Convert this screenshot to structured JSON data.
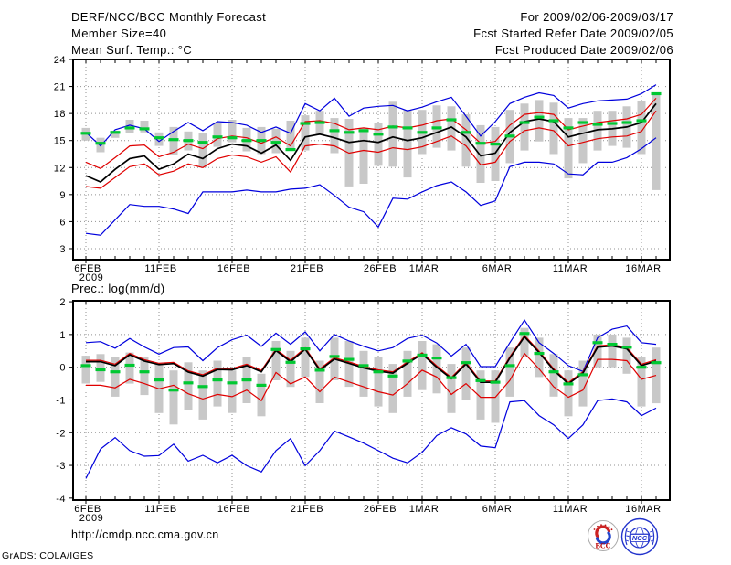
{
  "header": {
    "title": "DERF/NCC/BCC Monthly Forecast",
    "date_range": "For 2009/02/06-2009/03/17",
    "member_size": "Member Size=40",
    "refer_date": "Fcst Started Refer Date 2009/02/05",
    "produced_date": "Fcst Produced Date 2009/02/06"
  },
  "footer": {
    "url": "http://cmdp.ncc.cma.gov.cn",
    "credit": "GrADS: COLA/IGES",
    "logo_bcc": "BCC",
    "logo_ncc": "NCC"
  },
  "chart_data": [
    {
      "type": "line",
      "id": "surface-temperature",
      "title": "Mean Surf. Temp.: °C",
      "ylabel": "°C",
      "ylim": [
        1.78,
        24
      ],
      "yticks": [
        24,
        21,
        18,
        15,
        12,
        9,
        6,
        3
      ],
      "grid": true,
      "n_days": 40,
      "xticks": [
        {
          "day": 0,
          "label": "6FEB",
          "sublabel": "2009"
        },
        {
          "day": 5,
          "label": "11FEB"
        },
        {
          "day": 10,
          "label": "16FEB"
        },
        {
          "day": 15,
          "label": "21FEB"
        },
        {
          "day": 20,
          "label": "26FEB"
        },
        {
          "day": 23,
          "label": "1MAR"
        },
        {
          "day": 28,
          "label": "6MAR"
        },
        {
          "day": 33,
          "label": "11MAR"
        },
        {
          "day": 38,
          "label": "16MAR"
        }
      ],
      "series": [
        {
          "name": "ensemble-max",
          "color": "#0000dd",
          "width": 1.2,
          "values": [
            15.9,
            14.4,
            16.2,
            16.7,
            16.3,
            14.9,
            16.0,
            17.0,
            16.1,
            17.1,
            17.0,
            16.7,
            15.9,
            16.5,
            15.8,
            19.1,
            18.3,
            19.7,
            17.7,
            18.6,
            18.8,
            18.9,
            18.3,
            18.7,
            19.3,
            19.8,
            17.7,
            15.5,
            17.1,
            19.1,
            19.8,
            20.3,
            20.0,
            18.6,
            19.1,
            19.4,
            19.5,
            19.6,
            20.2,
            21.2
          ]
        },
        {
          "name": "plus-std",
          "color": "#e00000",
          "width": 1.2,
          "values": [
            12.6,
            11.9,
            13.1,
            14.4,
            14.5,
            13.2,
            13.7,
            14.6,
            14.1,
            15.2,
            15.5,
            15.3,
            14.7,
            15.4,
            14.4,
            17.1,
            17.2,
            16.9,
            16.2,
            16.4,
            16.2,
            16.6,
            16.4,
            16.7,
            17.2,
            17.4,
            16.2,
            14.7,
            14.9,
            16.7,
            17.9,
            18.1,
            17.9,
            16.2,
            16.6,
            17.0,
            17.2,
            17.4,
            17.9,
            19.7
          ]
        },
        {
          "name": "ensemble-mean",
          "color": "#000000",
          "width": 1.7,
          "values": [
            11.1,
            10.4,
            11.8,
            13.0,
            13.3,
            11.8,
            12.4,
            13.5,
            13.0,
            14.1,
            14.6,
            14.4,
            13.6,
            14.5,
            12.8,
            15.4,
            15.7,
            15.3,
            14.8,
            15.0,
            14.8,
            15.4,
            15.0,
            15.3,
            15.9,
            16.5,
            15.4,
            13.3,
            13.6,
            15.9,
            17.1,
            17.4,
            17.1,
            15.4,
            15.8,
            16.2,
            16.3,
            16.5,
            17.0,
            19.1
          ]
        },
        {
          "name": "minus-std",
          "color": "#e00000",
          "width": 1.2,
          "values": [
            9.9,
            9.7,
            10.9,
            12.1,
            12.4,
            11.2,
            11.6,
            12.4,
            12.0,
            13.0,
            13.4,
            13.2,
            12.6,
            13.2,
            11.5,
            14.4,
            14.6,
            14.4,
            13.6,
            13.9,
            13.7,
            14.2,
            14.0,
            14.3,
            14.9,
            15.5,
            14.4,
            12.3,
            12.6,
            14.9,
            16.1,
            16.4,
            16.1,
            14.4,
            14.8,
            15.2,
            15.4,
            15.5,
            16.0,
            18.3
          ]
        },
        {
          "name": "ensemble-min",
          "color": "#0000dd",
          "width": 1.2,
          "values": [
            4.7,
            4.5,
            6.2,
            7.9,
            7.7,
            7.7,
            7.4,
            6.9,
            9.3,
            9.3,
            9.3,
            9.5,
            9.3,
            9.3,
            9.6,
            9.7,
            10.1,
            8.9,
            7.6,
            7.1,
            5.4,
            8.6,
            8.5,
            9.3,
            10.0,
            10.4,
            9.3,
            7.8,
            8.3,
            12.1,
            12.6,
            12.6,
            12.4,
            11.3,
            11.2,
            12.6,
            12.6,
            13.1,
            14.1,
            15.3
          ]
        },
        {
          "name": "observation",
          "color": "#00c832",
          "style": "dash",
          "values": [
            15.8,
            14.7,
            15.9,
            16.4,
            16.3,
            15.3,
            15.1,
            15.0,
            14.8,
            15.4,
            15.3,
            15.0,
            15.0,
            14.8,
            14.0,
            16.9,
            17.0,
            16.1,
            15.9,
            16.1,
            15.7,
            16.5,
            16.4,
            15.9,
            16.4,
            17.3,
            15.9,
            14.7,
            14.6,
            15.5,
            17.0,
            17.6,
            17.2,
            16.4,
            17.0,
            16.8,
            16.9,
            17.0,
            17.2,
            20.2
          ]
        }
      ],
      "bars": {
        "name": "ensemble-spread-bar",
        "color": "#c8c8c8",
        "low": [
          15.0,
          13.7,
          15.3,
          15.8,
          15.9,
          14.4,
          13.4,
          13.9,
          12.0,
          14.3,
          14.8,
          13.8,
          13.5,
          13.6,
          14.1,
          13.9,
          15.6,
          13.6,
          9.9,
          10.2,
          12.2,
          12.1,
          10.9,
          13.5,
          14.2,
          13.9,
          12.1,
          10.3,
          10.5,
          12.5,
          13.9,
          14.9,
          13.5,
          10.8,
          12.5,
          13.9,
          14.4,
          14.2,
          13.5,
          9.5
        ],
        "high": [
          16.4,
          15.3,
          16.1,
          17.3,
          17.2,
          15.9,
          16.5,
          16.0,
          15.8,
          17.0,
          17.3,
          16.4,
          16.5,
          16.3,
          17.2,
          17.8,
          18.3,
          17.5,
          17.4,
          16.4,
          17.0,
          19.3,
          18.4,
          18.4,
          18.9,
          18.8,
          17.9,
          16.7,
          16.5,
          18.4,
          19.1,
          19.5,
          19.2,
          17.5,
          17.5,
          18.3,
          18.3,
          18.8,
          19.4,
          20.3
        ]
      }
    },
    {
      "type": "line",
      "id": "precipitation",
      "title": "Prec.: log(mm/d)",
      "ylabel": "log(mm/d)",
      "ylim": [
        -4.06,
        2.03
      ],
      "yticks": [
        2,
        1,
        0,
        -1,
        -2,
        -3,
        -4
      ],
      "grid": true,
      "n_days": 40,
      "xticks": [
        {
          "day": 0,
          "label": "6FEB",
          "sublabel": "2009"
        },
        {
          "day": 5,
          "label": "11FEB"
        },
        {
          "day": 10,
          "label": "16FEB"
        },
        {
          "day": 15,
          "label": "21FEB"
        },
        {
          "day": 20,
          "label": "26FEB"
        },
        {
          "day": 23,
          "label": "1MAR"
        },
        {
          "day": 28,
          "label": "6MAR"
        },
        {
          "day": 33,
          "label": "11MAR"
        },
        {
          "day": 38,
          "label": "16MAR"
        }
      ],
      "series": [
        {
          "name": "ensemble-max",
          "color": "#0000dd",
          "width": 1.2,
          "values": [
            0.75,
            0.78,
            0.58,
            0.88,
            0.62,
            0.4,
            0.6,
            0.62,
            0.2,
            0.6,
            0.84,
            0.98,
            0.64,
            1.04,
            0.7,
            1.08,
            0.5,
            1.0,
            0.8,
            0.64,
            0.5,
            0.6,
            0.88,
            0.98,
            0.74,
            0.34,
            0.7,
            0.02,
            0.02,
            0.75,
            1.44,
            0.75,
            0.42,
            0.05,
            -0.13,
            0.9,
            1.16,
            1.26,
            0.75,
            0.7
          ]
        },
        {
          "name": "plus-std",
          "color": "#e00000",
          "width": 1.2,
          "values": [
            0.21,
            0.21,
            0.09,
            0.42,
            0.23,
            0.12,
            0.15,
            -0.11,
            -0.23,
            -0.03,
            -0.04,
            0.09,
            -0.1,
            0.55,
            0.21,
            0.59,
            -0.05,
            0.29,
            0.16,
            0.02,
            -0.08,
            -0.14,
            0.16,
            0.44,
            0.04,
            -0.31,
            0.14,
            -0.42,
            -0.42,
            0.32,
            0.97,
            0.49,
            -0.05,
            -0.47,
            -0.14,
            0.65,
            0.69,
            0.6,
            0.09,
            0.23
          ]
        },
        {
          "name": "ensemble-mean",
          "color": "#000000",
          "width": 1.7,
          "values": [
            0.17,
            0.17,
            0.05,
            0.38,
            0.19,
            0.08,
            0.11,
            -0.15,
            -0.27,
            -0.07,
            -0.08,
            0.05,
            -0.14,
            0.51,
            0.17,
            0.55,
            -0.09,
            0.25,
            0.12,
            -0.02,
            -0.12,
            -0.18,
            0.12,
            0.4,
            0.0,
            -0.35,
            0.1,
            -0.46,
            -0.46,
            0.28,
            0.93,
            0.45,
            -0.09,
            -0.51,
            -0.18,
            0.61,
            0.65,
            0.56,
            0.05,
            0.19
          ]
        },
        {
          "name": "minus-std",
          "color": "#e00000",
          "width": 1.2,
          "values": [
            -0.55,
            -0.55,
            -0.63,
            -0.37,
            -0.5,
            -0.66,
            -0.55,
            -0.81,
            -0.97,
            -0.83,
            -0.9,
            -0.7,
            -1.02,
            -0.16,
            -0.51,
            -0.3,
            -0.75,
            -0.3,
            -0.45,
            -0.6,
            -0.75,
            -0.85,
            -0.5,
            -0.09,
            -0.3,
            -0.83,
            -0.5,
            -0.92,
            -0.92,
            -0.4,
            0.42,
            -0.05,
            -0.6,
            -0.92,
            -0.7,
            0.24,
            0.24,
            0.2,
            -0.37,
            -0.25
          ]
        },
        {
          "name": "ensemble-min",
          "color": "#0000dd",
          "width": 1.2,
          "values": [
            -3.4,
            -2.5,
            -2.15,
            -2.55,
            -2.72,
            -2.7,
            -2.35,
            -2.87,
            -2.69,
            -2.92,
            -2.69,
            -3.01,
            -3.2,
            -2.55,
            -2.18,
            -3.01,
            -2.55,
            -1.95,
            -2.13,
            -2.32,
            -2.55,
            -2.78,
            -2.92,
            -2.6,
            -2.09,
            -1.85,
            -2.04,
            -2.41,
            -2.46,
            -1.06,
            -1.02,
            -1.48,
            -1.76,
            -2.18,
            -1.76,
            -1.02,
            -0.97,
            -1.06,
            -1.48,
            -1.25
          ]
        },
        {
          "name": "observation",
          "color": "#00c832",
          "style": "dash",
          "values": [
            0.05,
            -0.08,
            -0.14,
            0.06,
            -0.14,
            -0.39,
            -0.7,
            -0.48,
            -0.59,
            -0.39,
            -0.48,
            -0.39,
            -0.55,
            0.54,
            0.15,
            0.56,
            -0.09,
            0.33,
            0.24,
            0.05,
            -0.14,
            -0.27,
            0.19,
            0.37,
            0.28,
            -0.32,
            0.14,
            -0.41,
            -0.46,
            0.05,
            1.03,
            0.42,
            -0.14,
            -0.51,
            -0.23,
            0.75,
            0.7,
            0.61,
            0.0,
            0.14
          ]
        }
      ],
      "bars": {
        "name": "ensemble-spread-bar",
        "color": "#c8c8c8",
        "low": [
          -0.5,
          -0.45,
          -0.9,
          -0.5,
          -0.85,
          -1.4,
          -1.75,
          -1.3,
          -1.6,
          -1.2,
          -1.4,
          -1.1,
          -1.5,
          -0.4,
          -0.6,
          -0.3,
          -1.1,
          -0.4,
          -0.6,
          -0.9,
          -1.2,
          -1.4,
          -0.9,
          -0.7,
          -0.8,
          -1.4,
          -1.0,
          -1.6,
          -1.7,
          -0.9,
          0.3,
          -0.3,
          -0.9,
          -1.5,
          -1.2,
          0.0,
          0.0,
          -0.2,
          -1.2,
          -1.1
        ],
        "high": [
          0.35,
          0.4,
          0.3,
          0.45,
          0.3,
          0.1,
          -0.1,
          0.15,
          -0.1,
          0.2,
          -0.1,
          0.3,
          -0.2,
          0.8,
          0.5,
          0.9,
          0.2,
          0.9,
          0.8,
          0.5,
          0.3,
          0.1,
          0.5,
          0.8,
          0.7,
          0.1,
          0.6,
          -0.1,
          -0.1,
          0.6,
          1.2,
          0.9,
          0.4,
          -0.1,
          0.2,
          1.0,
          1.0,
          0.9,
          0.3,
          0.6
        ]
      }
    }
  ]
}
